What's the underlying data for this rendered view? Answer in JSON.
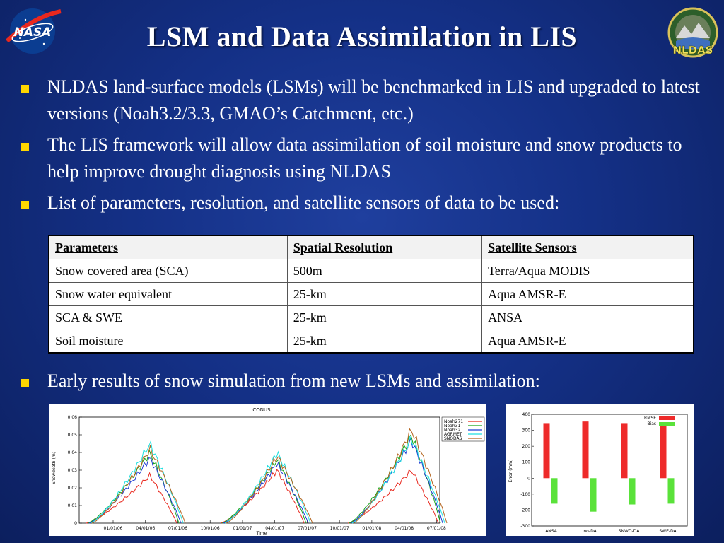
{
  "slide": {
    "title": "LSM and Data Assimilation in LIS",
    "logos": {
      "left": {
        "icon": "nasa-logo-icon",
        "text": "NASA"
      },
      "right": {
        "icon": "nldas-logo-icon",
        "text": "NLDAS"
      }
    },
    "bullets": [
      "NLDAS land-surface models (LSMs) will be benchmarked in LIS and upgraded to latest versions (Noah3.2/3.3, GMAO’s Catchment, etc.)",
      "The LIS framework will allow data assimilation of soil moisture and snow products to help improve drought diagnosis using NLDAS",
      "List of parameters, resolution, and satellite sensors of data to be used:"
    ],
    "last_bullet": "Early results of snow simulation from new LSMs and assimilation:",
    "bullet_color": "#ffd700"
  },
  "table": {
    "headers": [
      "Parameters",
      "Spatial Resolution",
      "Satellite Sensors"
    ],
    "rows": [
      [
        "Snow covered area (SCA)",
        "500m",
        "Terra/Aqua MODIS"
      ],
      [
        "Snow water equivalent",
        "25-km",
        "Aqua AMSR-E"
      ],
      [
        "SCA & SWE",
        "25-km",
        "ANSA"
      ],
      [
        "Soil moisture",
        "25-km",
        "Aqua AMSR-E"
      ]
    ]
  },
  "chart_data": [
    {
      "type": "line",
      "title": "CONUS",
      "xlabel": "Time",
      "ylabel": "Snowdepth (m)",
      "ylim": [
        0,
        0.06
      ],
      "yticks": [
        "0",
        "0.01",
        "0.02",
        "0.03",
        "0.04",
        "0.05",
        "0.06"
      ],
      "xticks": [
        "01/01/06",
        "04/01/06",
        "07/01/06",
        "10/01/06",
        "01/01/07",
        "04/01/07",
        "07/01/07",
        "10/01/07",
        "01/01/08",
        "04/01/08",
        "07/01/08"
      ],
      "legend_position": "top-right",
      "series": [
        {
          "name": "Noah271",
          "color": "#e8281e",
          "peaks": [
            0.027,
            0.03,
            0.03
          ]
        },
        {
          "name": "Noah31",
          "color": "#1aa31a",
          "peaks": [
            0.04,
            0.036,
            0.05
          ]
        },
        {
          "name": "Noah32",
          "color": "#1e3cd2",
          "peaks": [
            0.037,
            0.034,
            0.047
          ]
        },
        {
          "name": "AGRMET",
          "color": "#1ee0e0",
          "peaks": [
            0.045,
            0.04,
            0.048
          ]
        },
        {
          "name": "SNODAS",
          "color": "#b4641e",
          "peaks": [
            0.042,
            0.038,
            0.053
          ]
        }
      ]
    },
    {
      "type": "bar",
      "ylabel": "Error (mm)",
      "ylim": [
        -300,
        400
      ],
      "yticks": [
        "400",
        "300",
        "200",
        "100",
        "0",
        "-100",
        "-200",
        "-300"
      ],
      "categories": [
        "ANSA",
        "no-DA",
        "SNWD-DA",
        "SWE-DA"
      ],
      "legend_position": "top-right",
      "series": [
        {
          "name": "RMSE",
          "color": "#ee2a2a",
          "values": [
            345,
            355,
            345,
            340
          ]
        },
        {
          "name": "Bias",
          "color": "#5ae23a",
          "values": [
            -160,
            -210,
            -165,
            -160
          ]
        }
      ]
    }
  ]
}
